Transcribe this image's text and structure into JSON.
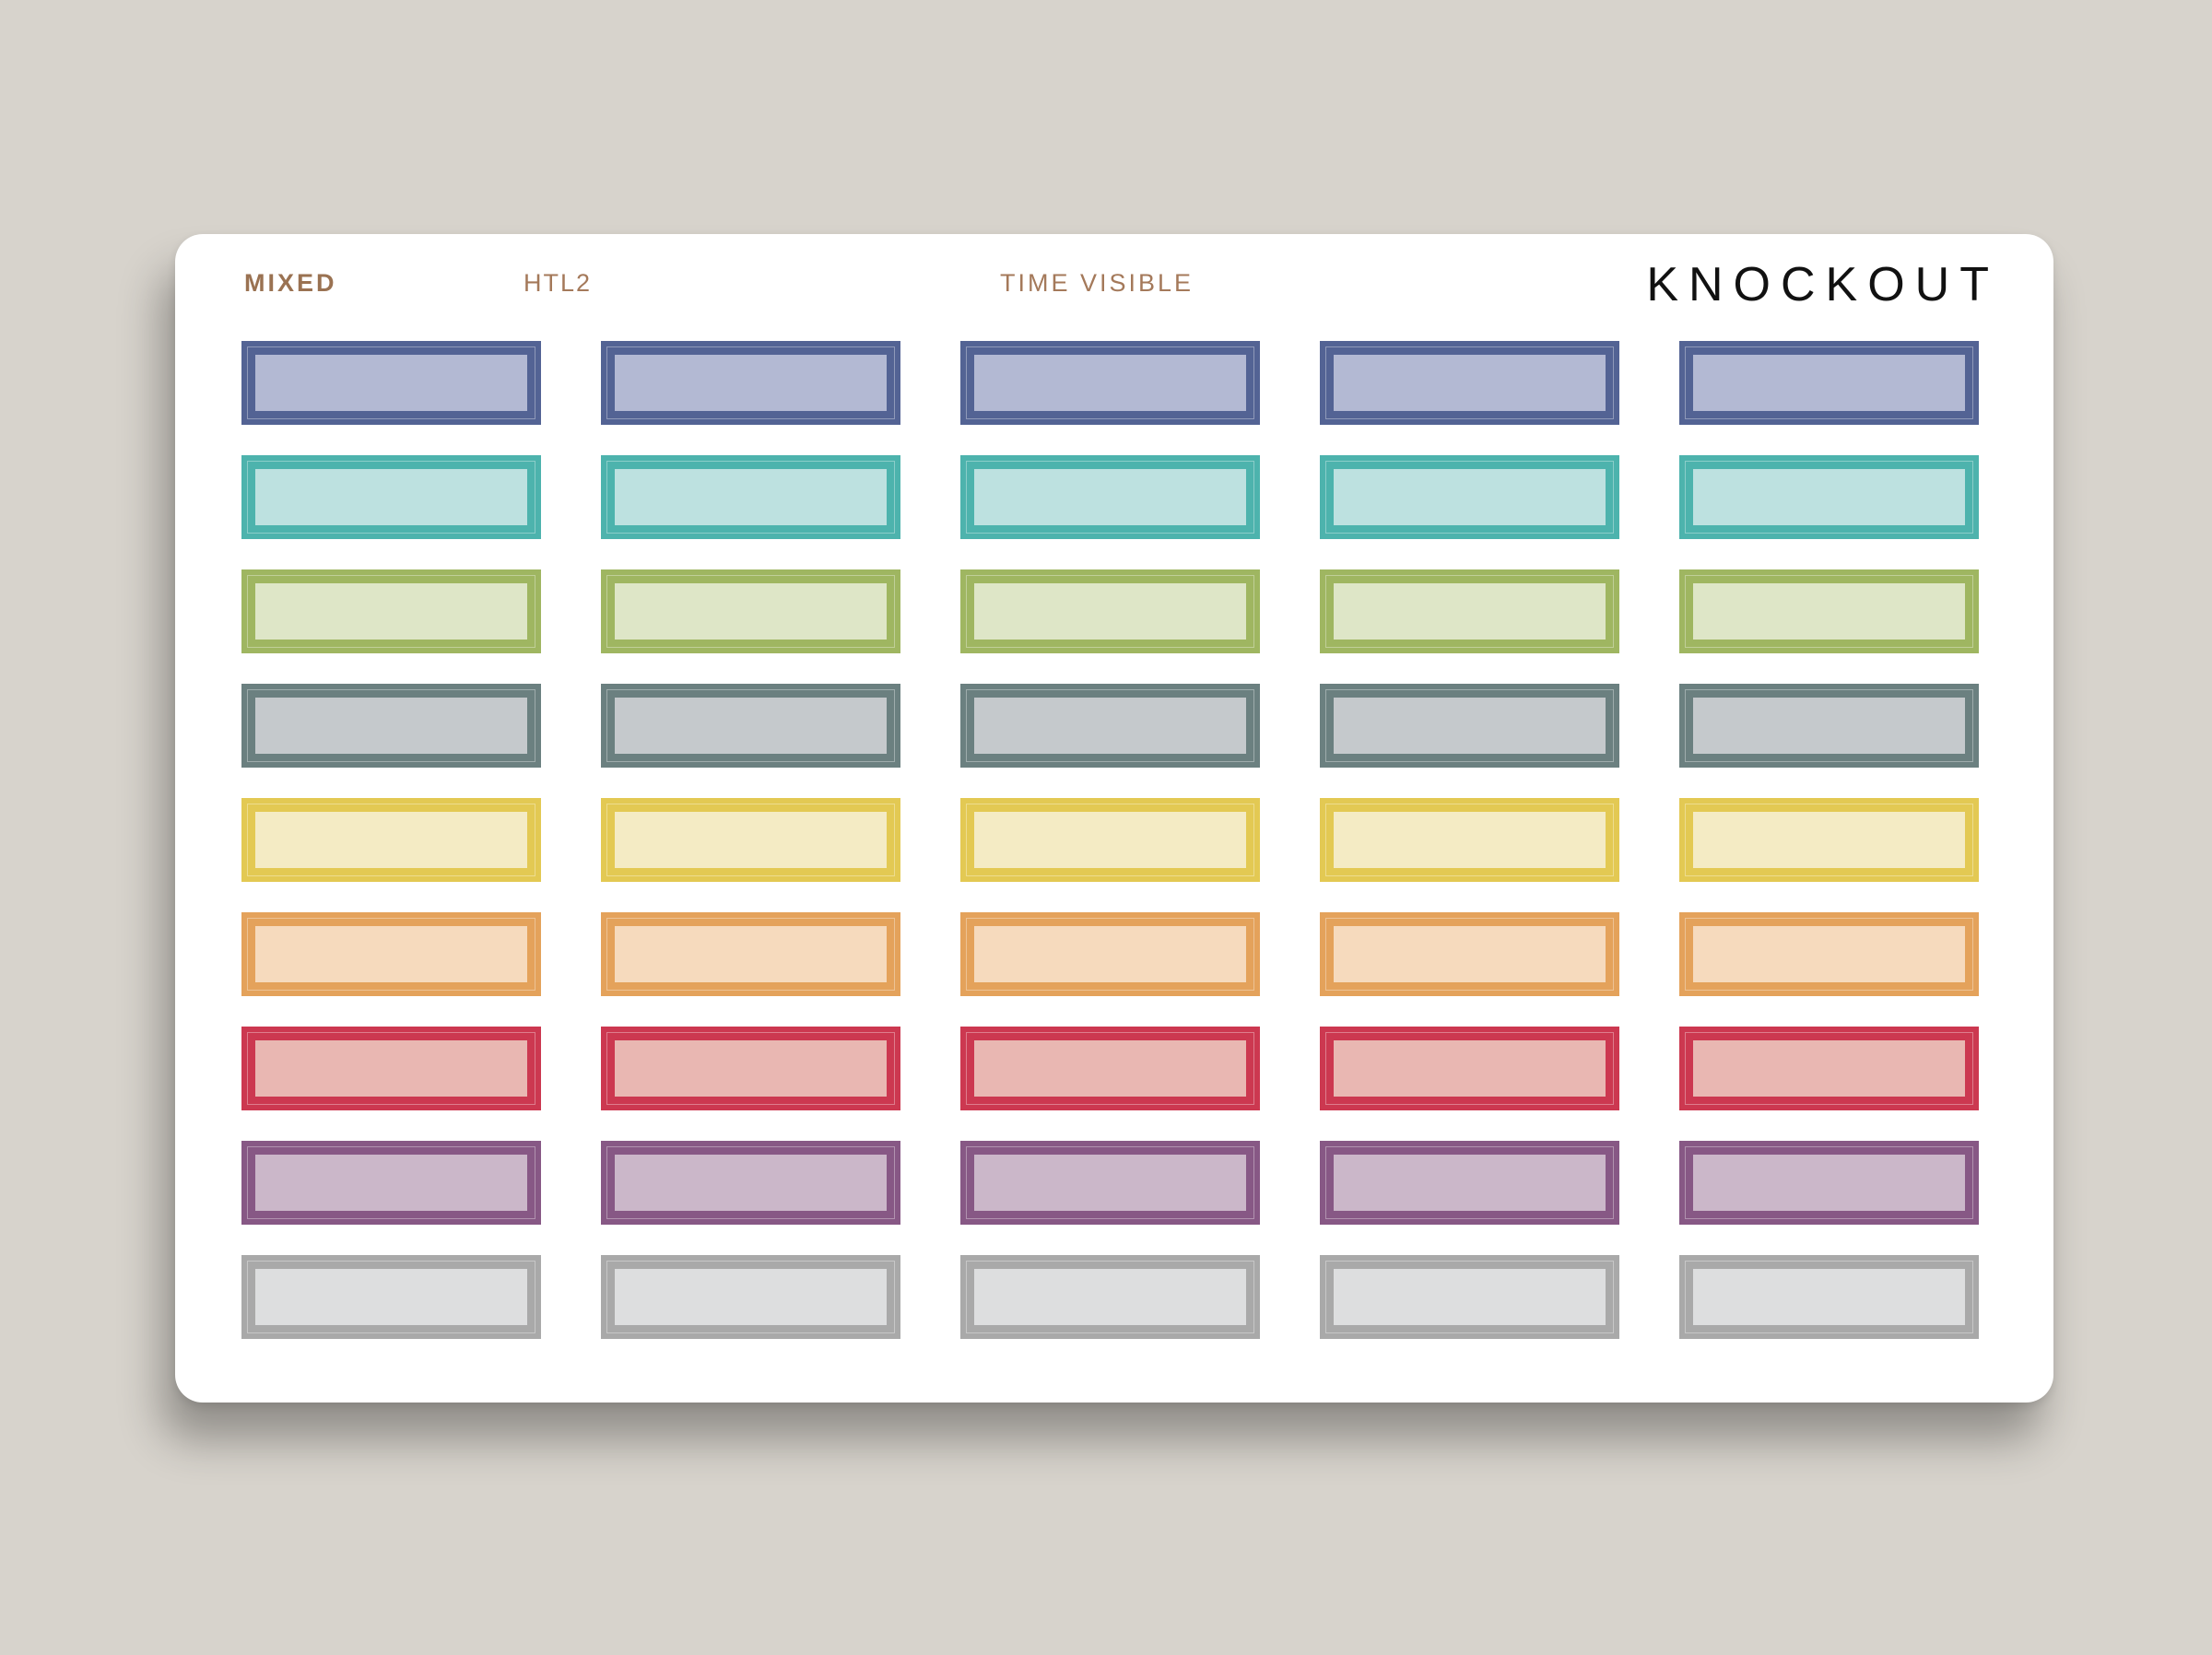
{
  "header": {
    "category": "MIXED",
    "code": "HTL2",
    "note": "TIME VISIBLE",
    "brand": "KNOCKOUT"
  },
  "stickers": {
    "columns": 5,
    "rows": [
      {
        "color": "blue",
        "frame": "#536394",
        "fill": "#b3b9d3"
      },
      {
        "color": "teal",
        "frame": "#4db3ad",
        "fill": "#bde1e0"
      },
      {
        "color": "green",
        "frame": "#9fb661",
        "fill": "#dee6c7"
      },
      {
        "color": "slate",
        "frame": "#6b8080",
        "fill": "#c5c9cc"
      },
      {
        "color": "yellow",
        "frame": "#e3c953",
        "fill": "#f4ebc4"
      },
      {
        "color": "orange",
        "frame": "#e4a25b",
        "fill": "#f6dabd"
      },
      {
        "color": "red",
        "frame": "#cc3850",
        "fill": "#e9b7b2"
      },
      {
        "color": "purple",
        "frame": "#875885",
        "fill": "#cbb7c9"
      },
      {
        "color": "gray",
        "frame": "#a9a9a9",
        "fill": "#dddedf"
      }
    ]
  }
}
